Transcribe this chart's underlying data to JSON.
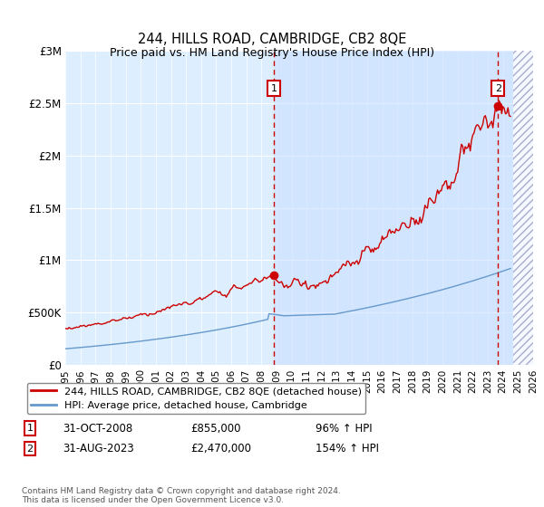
{
  "title": "244, HILLS ROAD, CAMBRIDGE, CB2 8QE",
  "subtitle": "Price paid vs. HM Land Registry's House Price Index (HPI)",
  "legend_line1": "244, HILLS ROAD, CAMBRIDGE, CB2 8QE (detached house)",
  "legend_line2": "HPI: Average price, detached house, Cambridge",
  "annotation1_date": "31-OCT-2008",
  "annotation1_price": "£855,000",
  "annotation1_hpi": "96% ↑ HPI",
  "annotation2_date": "31-AUG-2023",
  "annotation2_price": "£2,470,000",
  "annotation2_hpi": "154% ↑ HPI",
  "footer": "Contains HM Land Registry data © Crown copyright and database right 2024.\nThis data is licensed under the Open Government Licence v3.0.",
  "sale1_year": 2008.83,
  "sale1_value": 855000,
  "sale2_year": 2023.67,
  "sale2_value": 2470000,
  "hatch_start": 2024.67,
  "xmin": 1995,
  "xmax": 2026,
  "ymin": 0,
  "ymax": 3000000,
  "red_color": "#cc0000",
  "blue_color": "#6699cc",
  "bg_color": "#ddeeff",
  "shade_bg": "#cce0ff",
  "yticks": [
    0,
    500000,
    1000000,
    1500000,
    2000000,
    2500000,
    3000000
  ],
  "ytick_labels": [
    "£0",
    "£500K",
    "£1M",
    "£1.5M",
    "£2M",
    "£2.5M",
    "£3M"
  ],
  "xticks": [
    1995,
    1996,
    1997,
    1998,
    1999,
    2000,
    2001,
    2002,
    2003,
    2004,
    2005,
    2006,
    2007,
    2008,
    2009,
    2010,
    2011,
    2012,
    2013,
    2014,
    2015,
    2016,
    2017,
    2018,
    2019,
    2020,
    2021,
    2022,
    2023,
    2024,
    2025,
    2026
  ]
}
